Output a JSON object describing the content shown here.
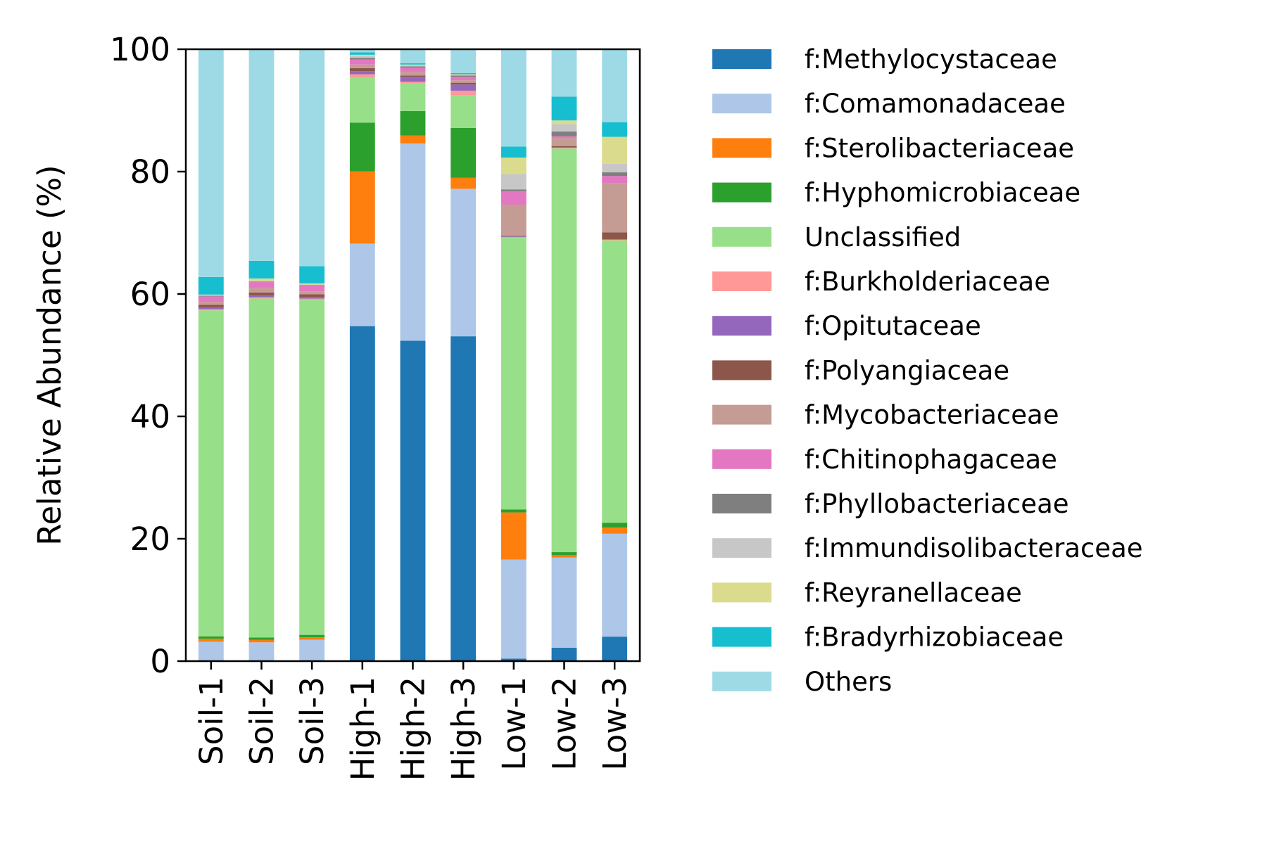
{
  "chart_data": {
    "type": "bar",
    "stacked": true,
    "title": "",
    "xlabel": "",
    "ylabel": "Relative Abundance (%)",
    "ylim": [
      0,
      100
    ],
    "yticks": [
      0,
      20,
      40,
      60,
      80,
      100
    ],
    "grid": false,
    "legend_position": "right, outside plot",
    "categories": [
      "Soil-1",
      "Soil-2",
      "Soil-3",
      "High-1",
      "High-2",
      "High-3",
      "Low-1",
      "Low-2",
      "Low-3"
    ],
    "series": [
      {
        "name": "f:Methylocystaceae",
        "color": "#1f77b4",
        "values": [
          0.1,
          0.1,
          0.1,
          54.8,
          52.3,
          53.3,
          0.4,
          2.2,
          4.0
        ]
      },
      {
        "name": "f:Comamonadaceae",
        "color": "#aec7e8",
        "values": [
          3.1,
          3.0,
          3.4,
          13.5,
          32.2,
          24.2,
          16.2,
          14.8,
          16.8
        ]
      },
      {
        "name": "f:Sterolibacteriaceae",
        "color": "#ff7f0e",
        "values": [
          0.5,
          0.4,
          0.4,
          11.8,
          1.3,
          1.8,
          7.7,
          0.4,
          1.0
        ]
      },
      {
        "name": "f:Hyphomicrobiaceae",
        "color": "#2ca02c",
        "values": [
          0.4,
          0.4,
          0.4,
          8.0,
          4.0,
          8.2,
          0.5,
          0.5,
          0.8
        ]
      },
      {
        "name": "Unclassified",
        "color": "#98df8a",
        "values": [
          53.8,
          55.9,
          54.8,
          7.3,
          4.5,
          5.4,
          44.4,
          66.3,
          46.1
        ]
      },
      {
        "name": "f:Burkholderiaceae",
        "color": "#ff9896",
        "values": [
          0.2,
          0.2,
          0.2,
          0.6,
          0.3,
          0.7,
          0.1,
          0.1,
          0.1
        ]
      },
      {
        "name": "f:Opitutaceae",
        "color": "#9467bd",
        "values": [
          0.3,
          0.3,
          0.3,
          0.5,
          0.8,
          1.0,
          0.1,
          0.1,
          0.1
        ]
      },
      {
        "name": "f:Polyangiaceae",
        "color": "#8c564b",
        "values": [
          0.4,
          0.5,
          0.4,
          0.5,
          0.2,
          0.3,
          0.1,
          0.2,
          1.1
        ]
      },
      {
        "name": "f:Mycobacteriaceae",
        "color": "#c49c94",
        "values": [
          0.5,
          0.7,
          0.5,
          0.6,
          0.6,
          0.4,
          5.1,
          1.3,
          8.0
        ]
      },
      {
        "name": "f:Chitinophagaceae",
        "color": "#e377c2",
        "values": [
          0.9,
          1.0,
          0.9,
          0.8,
          0.7,
          0.6,
          2.2,
          0.3,
          1.2
        ]
      },
      {
        "name": "f:Phyllobacteriaceae",
        "color": "#7f7f7f",
        "values": [
          0.1,
          0.1,
          0.1,
          0.3,
          0.2,
          0.2,
          0.3,
          0.8,
          0.6
        ]
      },
      {
        "name": "f:Immundisolibacteraceae",
        "color": "#c7c7c7",
        "values": [
          0.1,
          0.1,
          0.1,
          0.3,
          0.2,
          0.1,
          2.5,
          1.2,
          1.4
        ]
      },
      {
        "name": "f:Reyranellaceae",
        "color": "#dbdb8d",
        "values": [
          0.1,
          0.4,
          0.2,
          0.2,
          0.1,
          0.1,
          2.7,
          0.6,
          4.4
        ]
      },
      {
        "name": "f:Bradyrhizobiaceae",
        "color": "#17becf",
        "values": [
          2.9,
          2.9,
          2.8,
          0.4,
          0.2,
          0.2,
          1.8,
          3.9,
          2.4
        ]
      },
      {
        "name": "Others",
        "color": "#9edae5",
        "values": [
          37.6,
          34.9,
          35.5,
          0.5,
          2.3,
          3.9,
          15.9,
          7.8,
          11.9
        ]
      }
    ]
  }
}
